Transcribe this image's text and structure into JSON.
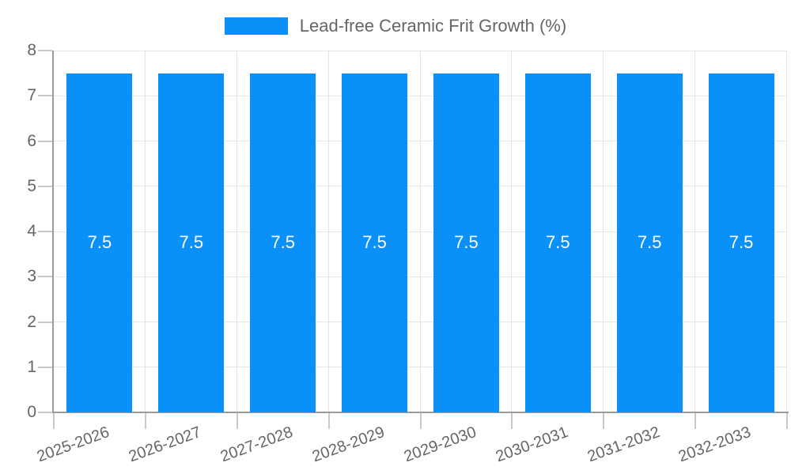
{
  "chart_data": {
    "type": "bar",
    "title": "Lead-free Ceramic Frit Growth (%)",
    "legend": {
      "label": "Lead-free Ceramic Frit Growth (%)",
      "color": "#0A90F9",
      "position": "top"
    },
    "categories": [
      "2025-2026",
      "2026-2027",
      "2027-2028",
      "2028-2029",
      "2029-2030",
      "2030-2031",
      "2031-2032",
      "2032-2033"
    ],
    "series": [
      {
        "name": "Lead-free Ceramic Frit Growth (%)",
        "values": [
          7.5,
          7.5,
          7.5,
          7.5,
          7.5,
          7.5,
          7.5,
          7.5
        ]
      }
    ],
    "value_labels": [
      "7.5",
      "7.5",
      "7.5",
      "7.5",
      "7.5",
      "7.5",
      "7.5",
      "7.5"
    ],
    "xlabel": "",
    "ylabel": "",
    "ylim": [
      0,
      8
    ],
    "yticks": [
      0,
      1,
      2,
      3,
      4,
      5,
      6,
      7,
      8
    ],
    "grid": true,
    "colors": {
      "bar": "#0A90F9",
      "grid": "#E6E6E6",
      "axis": "#9B9B9B",
      "tick": "#C9C9C9",
      "axis_text": "#666666",
      "bar_label_text": "#FFFFFF"
    }
  }
}
